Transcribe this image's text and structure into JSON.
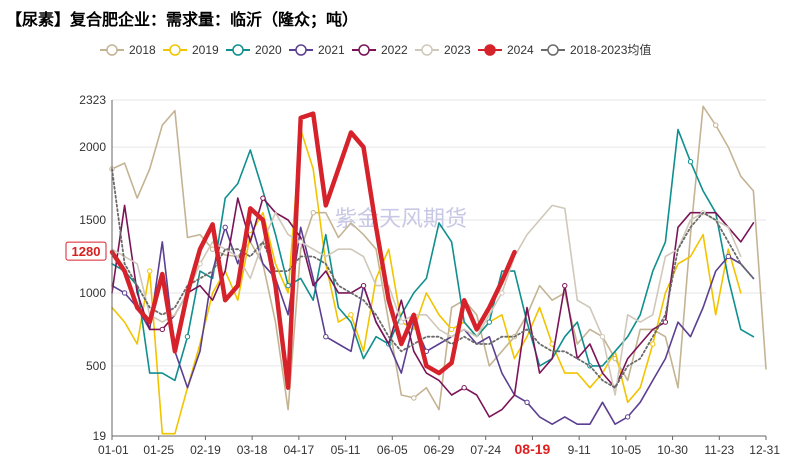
{
  "title": "【尿素】复合肥企业：需求量：临沂（隆众；吨）",
  "watermark": "紫金天风期货",
  "chart_data": {
    "type": "line",
    "title": "【尿素】复合肥企业：需求量：临沂（隆众；吨）",
    "xlabel": "",
    "ylabel": "",
    "ylim": [
      19,
      2323
    ],
    "yticks": [
      19,
      500,
      1000,
      1500,
      2000,
      2323
    ],
    "x_tick_labels": [
      "01-01",
      "01-25",
      "02-19",
      "03-18",
      "04-17",
      "05-11",
      "06-05",
      "06-29",
      "07-24",
      "08-19",
      "9-11",
      "10-05",
      "10-30",
      "11-23",
      "12-31"
    ],
    "highlight_tick": "08-19",
    "legend_position": "top",
    "callout": {
      "label": "1280",
      "value": 1280,
      "series": "2024"
    },
    "x_count": 53,
    "series": [
      {
        "name": "2018",
        "color": "#c4b494",
        "dashed": false,
        "bold": false,
        "values": [
          1850,
          1890,
          1650,
          1850,
          2150,
          2250,
          1380,
          1400,
          1300,
          1260,
          1250,
          1350,
          1200,
          800,
          200,
          1300,
          1550,
          1550,
          1380,
          1480,
          1400,
          1300,
          800,
          300,
          280,
          350,
          200,
          900,
          950,
          850,
          500,
          600,
          700,
          850,
          1050,
          950,
          1000,
          650,
          750,
          700,
          550,
          400,
          750,
          750,
          700,
          350,
          1400,
          2280,
          2150,
          2000,
          1800,
          1700,
          480
        ]
      },
      {
        "name": "2019",
        "color": "#f2c400",
        "dashed": false,
        "bold": false,
        "values": [
          900,
          800,
          650,
          1150,
          35,
          35,
          350,
          650,
          1000,
          1150,
          950,
          1400,
          1550,
          1200,
          1000,
          2120,
          1850,
          1200,
          800,
          850,
          600,
          1100,
          1300,
          800,
          750,
          1000,
          850,
          750,
          800,
          700,
          800,
          850,
          550,
          700,
          900,
          650,
          450,
          450,
          350,
          450,
          600,
          250,
          350,
          650,
          1000,
          1200,
          1250,
          1400,
          850,
          1300,
          1000
        ]
      },
      {
        "name": "2020",
        "color": "#108f8f",
        "dashed": false,
        "bold": false,
        "values": [
          1200,
          1150,
          1050,
          450,
          450,
          400,
          700,
          1150,
          1100,
          1650,
          1750,
          1980,
          1700,
          1400,
          1050,
          1100,
          950,
          1400,
          900,
          800,
          550,
          700,
          650,
          850,
          1000,
          1100,
          1480,
          1350,
          800,
          700,
          800,
          1150,
          1150,
          800,
          500,
          550,
          700,
          800,
          500,
          500,
          600,
          700,
          850,
          1150,
          1350,
          2120,
          1900,
          1700,
          1550,
          1100,
          750,
          700
        ]
      },
      {
        "name": "2021",
        "color": "#5b3f91",
        "dashed": false,
        "bold": false,
        "values": [
          1050,
          1000,
          900,
          750,
          1350,
          600,
          350,
          600,
          1150,
          1450,
          1200,
          1500,
          1200,
          1100,
          850,
          1450,
          1100,
          700,
          650,
          600,
          1050,
          800,
          650,
          450,
          800,
          600,
          650,
          700,
          750,
          650,
          700,
          450,
          300,
          250,
          150,
          100,
          150,
          100,
          100,
          250,
          100,
          150,
          250,
          400,
          550,
          800,
          700,
          900,
          1150,
          1250,
          1200,
          1100
        ]
      },
      {
        "name": "2022",
        "color": "#7b1457",
        "dashed": false,
        "bold": false,
        "values": [
          1000,
          1600,
          1000,
          750,
          750,
          850,
          1000,
          1050,
          950,
          1150,
          1650,
          1350,
          1650,
          1550,
          1500,
          1380,
          1050,
          1150,
          1000,
          1000,
          1050,
          800,
          650,
          950,
          600,
          450,
          400,
          300,
          350,
          300,
          150,
          200,
          300,
          900,
          450,
          550,
          1050,
          550,
          650,
          450,
          350,
          550,
          650,
          750,
          800,
          1450,
          1550,
          1550,
          1550,
          1450,
          1350,
          1480
        ]
      },
      {
        "name": "2023",
        "color": "#d0c8ba",
        "dashed": false,
        "bold": false,
        "values": [
          1300,
          1250,
          1200,
          850,
          800,
          850,
          1000,
          1200,
          1350,
          1300,
          1250,
          1100,
          1350,
          1550,
          1400,
          1350,
          1300,
          1250,
          1300,
          1300,
          1250,
          1050,
          1050,
          800,
          850,
          850,
          750,
          700,
          750,
          700,
          850,
          1000,
          1250,
          1400,
          1500,
          1600,
          1580,
          950,
          900,
          700,
          300,
          850,
          800,
          850,
          1250,
          1300,
          1500,
          1550,
          1500,
          1450,
          1250
        ]
      },
      {
        "name": "2024",
        "color": "#d6222a",
        "dashed": false,
        "bold": true,
        "values": [
          1280,
          1150,
          900,
          800,
          1130,
          600,
          1000,
          1300,
          1470,
          950,
          1050,
          1580,
          1500,
          1050,
          350,
          2200,
          2230,
          1600,
          1850,
          2100,
          2000,
          1450,
          950,
          650,
          850,
          500,
          450,
          520,
          950,
          750,
          900,
          1080,
          1280
        ]
      },
      {
        "name": "2018-2023均值",
        "color": "#6b6b6b",
        "dashed": true,
        "bold": false,
        "values": [
          1850,
          1200,
          1050,
          900,
          850,
          900,
          1050,
          1100,
          1150,
          1300,
          1300,
          1250,
          1350,
          1150,
          1150,
          1250,
          1250,
          1200,
          1050,
          1000,
          950,
          850,
          700,
          600,
          650,
          700,
          700,
          650,
          700,
          650,
          650,
          700,
          700,
          750,
          650,
          600,
          600,
          550,
          500,
          400,
          350,
          500,
          550,
          700,
          850,
          1300,
          1450,
          1550,
          1500,
          1350,
          1200,
          1100
        ]
      }
    ]
  }
}
